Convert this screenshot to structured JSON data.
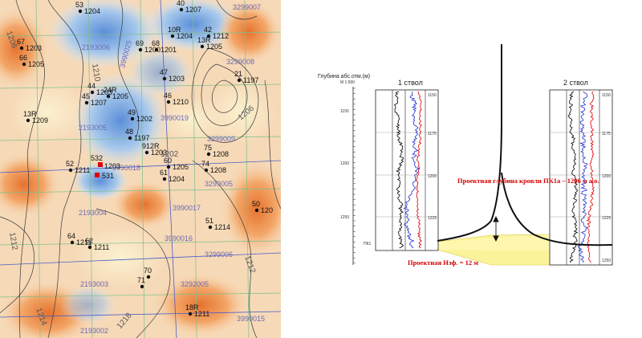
{
  "map": {
    "wells": [
      {
        "label": "53",
        "num": "1204"
      },
      {
        "label": "40",
        "num": "1207"
      },
      {
        "label": "10R",
        "num": "1204"
      },
      {
        "label": "42",
        "num": "1212"
      },
      {
        "label": "13R",
        "num": "1205"
      },
      {
        "label": "67",
        "num": "1203"
      },
      {
        "label": "66",
        "num": "1205"
      },
      {
        "label": "69",
        "num": "1200"
      },
      {
        "label": "68",
        "num": "1201"
      },
      {
        "label": "47",
        "num": "1203"
      },
      {
        "label": "21",
        "num": "1197"
      },
      {
        "label": "44",
        "num": "1203"
      },
      {
        "label": "24R",
        "num": "1205"
      },
      {
        "label": "45",
        "num": "1207"
      },
      {
        "label": "46",
        "num": "1210"
      },
      {
        "label": "13R",
        "num": "1209"
      },
      {
        "label": "49",
        "num": "1202"
      },
      {
        "label": "48",
        "num": "1197"
      },
      {
        "label": "912R",
        "num": "1203"
      },
      {
        "label": "75",
        "num": "1208"
      },
      {
        "label": "74",
        "num": "1208"
      },
      {
        "label": "60",
        "num": "1205"
      },
      {
        "label": "61",
        "num": "1204"
      },
      {
        "label": "52",
        "num": "1211"
      },
      {
        "label": "50",
        "num": "120"
      },
      {
        "label": "51",
        "num": "1214"
      },
      {
        "label": "64",
        "num": "1211"
      },
      {
        "label": "62",
        "num": "1211"
      },
      {
        "label": "70",
        "num": ""
      },
      {
        "label": "71",
        "num": ""
      },
      {
        "label": "18R",
        "num": "1211"
      }
    ],
    "special_wells": {
      "w1": "532",
      "w1_num": "1203",
      "w2": "531"
    },
    "codes": [
      "3990025",
      "2193006",
      "3990019",
      "2193005",
      "3990018",
      "2193004",
      "3990017",
      "2193003",
      "3990016",
      "3299006",
      "3299007",
      "3299008",
      "3299009",
      "3299005",
      "3990015",
      "3292005",
      "2193002"
    ],
    "contours": [
      "1206",
      "1212",
      "1210",
      "1214",
      "1218",
      "1202",
      "1206"
    ]
  },
  "section": {
    "depth_axis_title": "Глубина абс.отм.(м)",
    "scale": "М 1:500",
    "depth_ticks": [
      "1150",
      "1200",
      "1250"
    ],
    "wellbore1_title": "1 ствол",
    "wellbore2_title": "2 ствол",
    "track_ticks": [
      "1150",
      "1175",
      "1200",
      "1225",
      "1250"
    ],
    "layer_label": "ПК1",
    "annotation_top": "Проектная глубина кровли ПК1а – 1206 м а.о.",
    "annotation_bottom": "Проектная Нэф. = 12 м"
  }
}
